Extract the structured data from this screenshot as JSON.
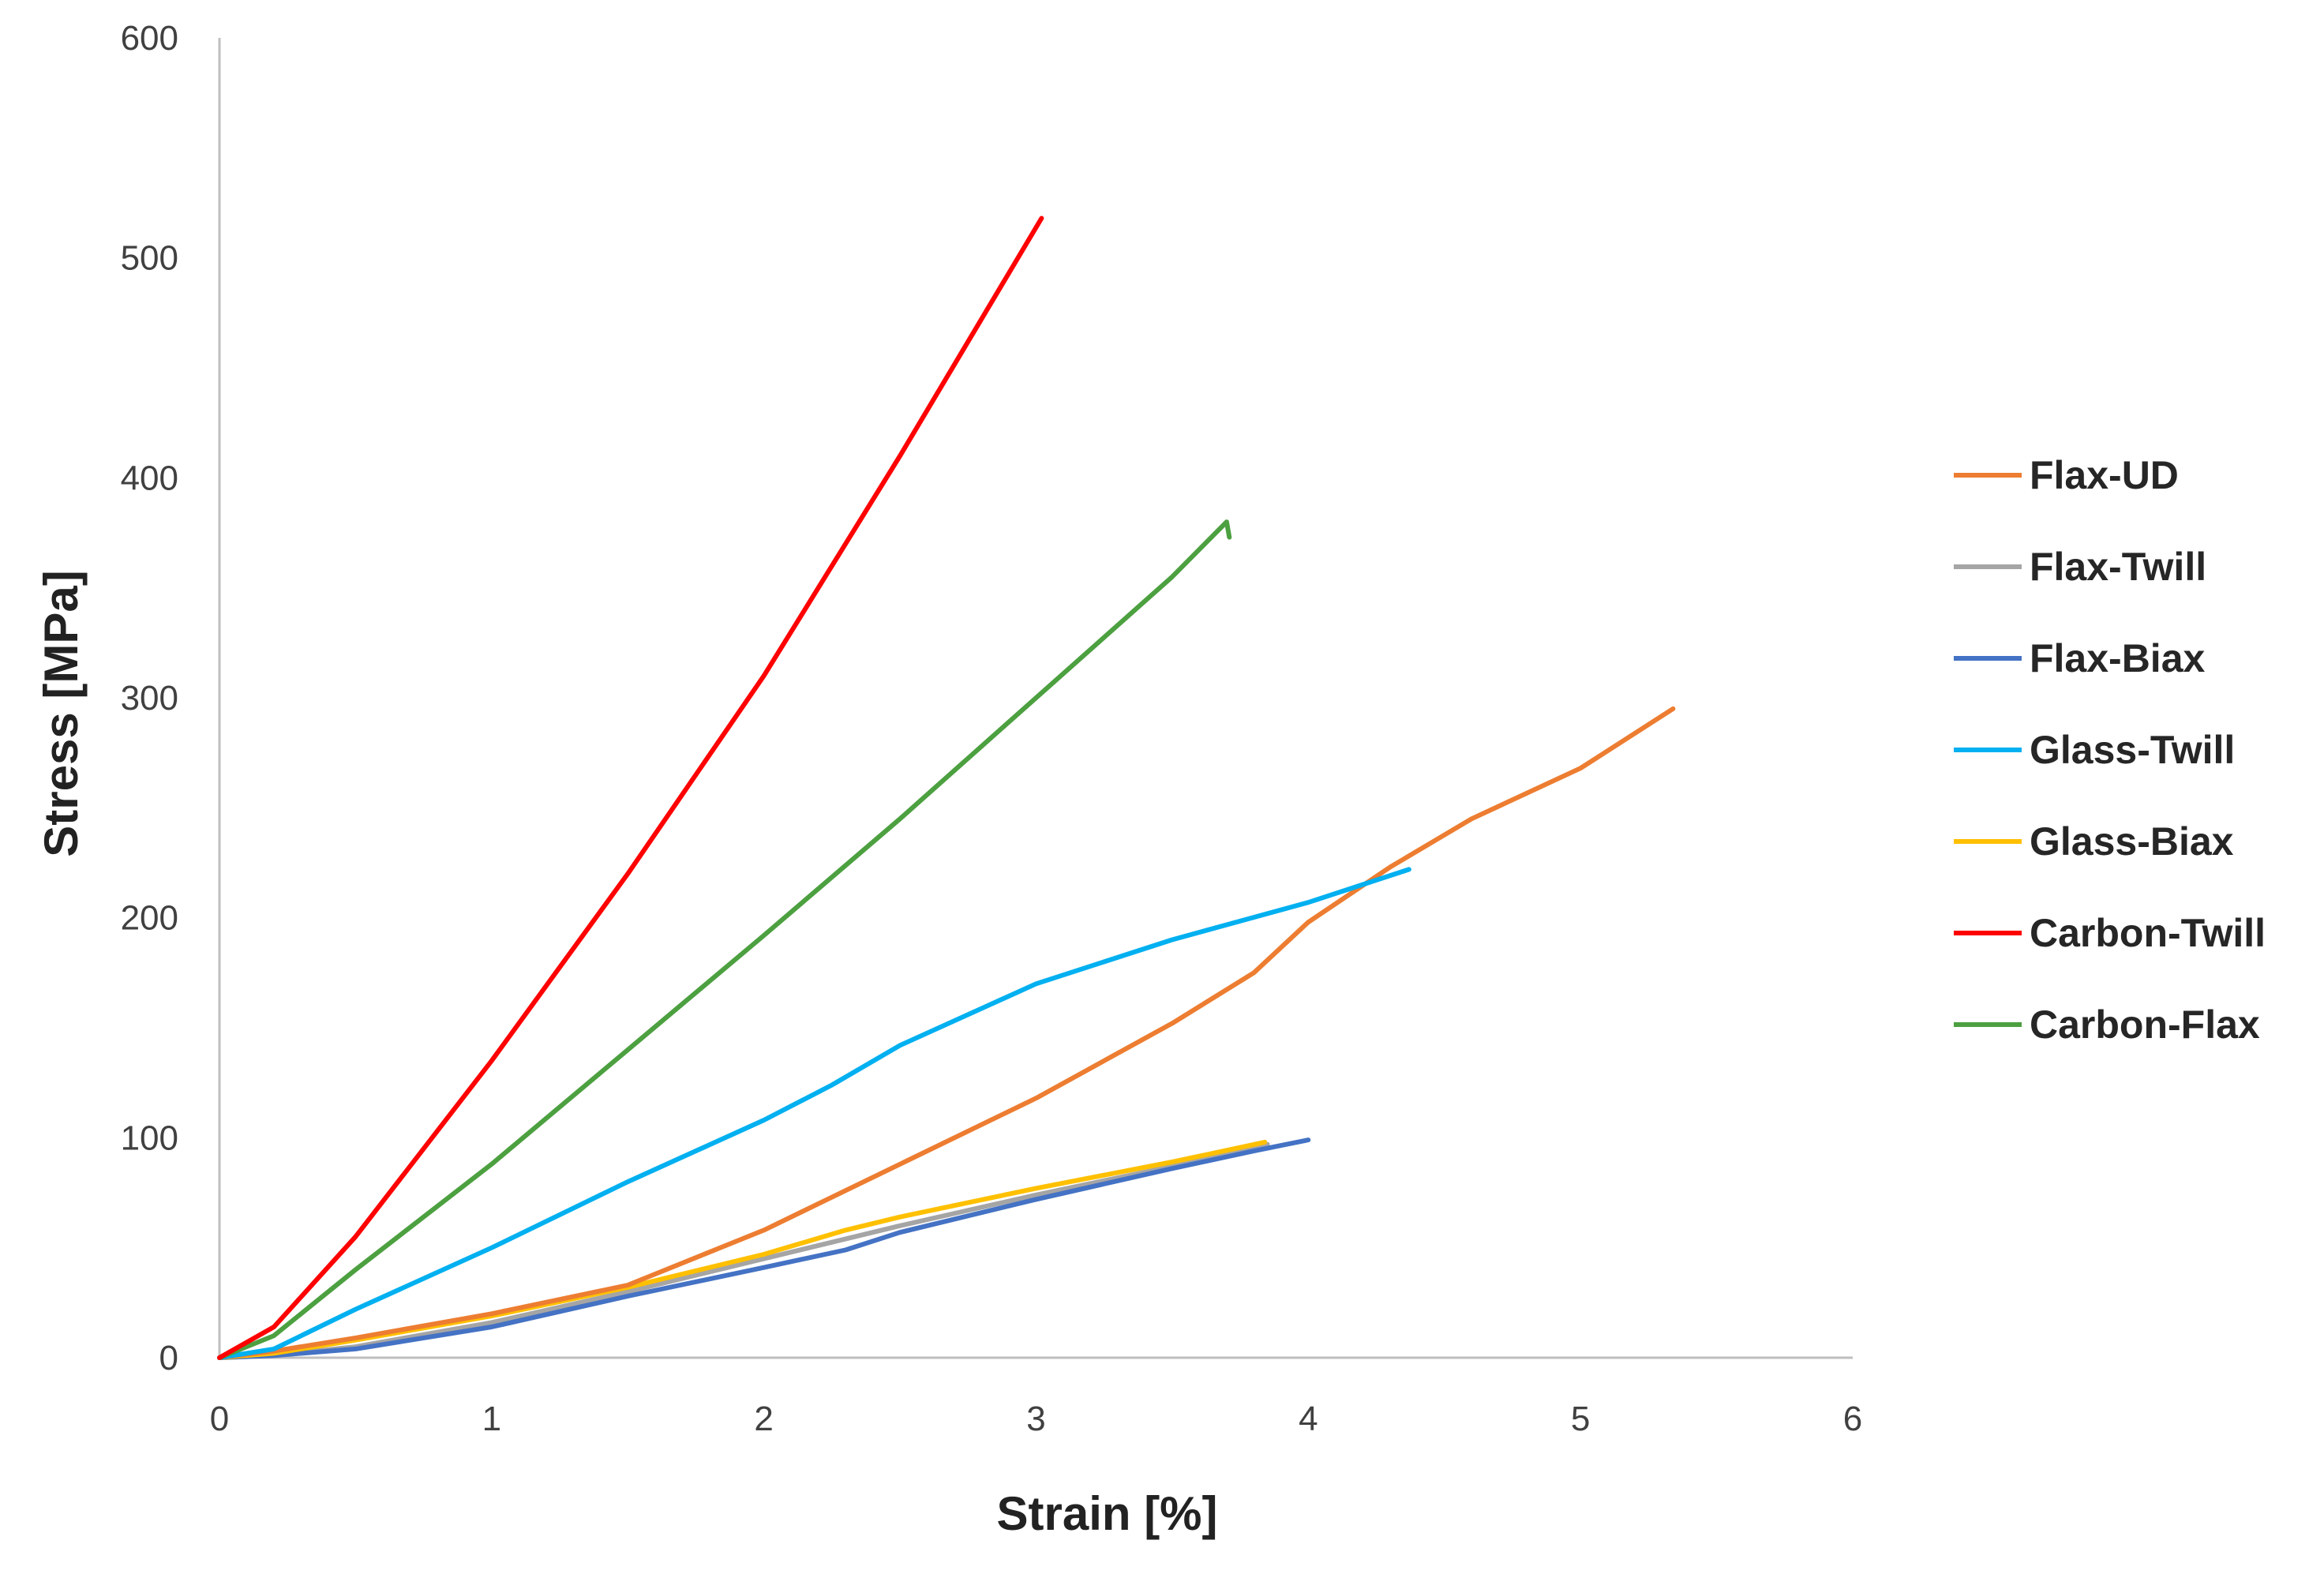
{
  "chart_data": {
    "type": "line",
    "title": "",
    "xlabel": "Strain [%]",
    "ylabel": "Stress [MPa]",
    "xlim": [
      0,
      6
    ],
    "ylim": [
      0,
      600
    ],
    "xticks": [
      0,
      1,
      2,
      3,
      4,
      5,
      6
    ],
    "yticks": [
      0,
      100,
      200,
      300,
      400,
      500,
      600
    ],
    "grid": false,
    "legend_position": "right",
    "series": [
      {
        "name": "Flax-UD",
        "color": "#ED7D31",
        "points": [
          [
            0,
            0
          ],
          [
            0.2,
            3
          ],
          [
            0.5,
            9
          ],
          [
            1.0,
            20
          ],
          [
            1.5,
            33
          ],
          [
            2.0,
            58
          ],
          [
            2.5,
            88
          ],
          [
            3.0,
            118
          ],
          [
            3.5,
            152
          ],
          [
            3.8,
            175
          ],
          [
            4.0,
            198
          ],
          [
            4.3,
            223
          ],
          [
            4.6,
            245
          ],
          [
            5.0,
            268
          ],
          [
            5.34,
            295
          ]
        ]
      },
      {
        "name": "Flax-Twill",
        "color": "#A5A5A5",
        "points": [
          [
            0,
            0
          ],
          [
            0.2,
            1
          ],
          [
            0.5,
            5
          ],
          [
            1.0,
            16
          ],
          [
            1.5,
            30
          ],
          [
            2.0,
            45
          ],
          [
            2.5,
            60
          ],
          [
            3.0,
            74
          ],
          [
            3.5,
            87
          ],
          [
            3.85,
            97
          ]
        ]
      },
      {
        "name": "Flax-Biax",
        "color": "#4472C4",
        "points": [
          [
            0,
            0
          ],
          [
            0.2,
            1
          ],
          [
            0.5,
            4
          ],
          [
            1.0,
            14
          ],
          [
            1.5,
            28
          ],
          [
            2.0,
            41
          ],
          [
            2.3,
            49
          ],
          [
            2.5,
            57
          ],
          [
            3.0,
            72
          ],
          [
            3.5,
            86
          ],
          [
            3.8,
            94
          ],
          [
            4.0,
            99
          ]
        ]
      },
      {
        "name": "Glass-Twill",
        "color": "#00B0F0",
        "points": [
          [
            0,
            0
          ],
          [
            0.2,
            4
          ],
          [
            0.5,
            22
          ],
          [
            1.0,
            50
          ],
          [
            1.5,
            80
          ],
          [
            2.0,
            108
          ],
          [
            2.25,
            124
          ],
          [
            2.5,
            142
          ],
          [
            3.0,
            170
          ],
          [
            3.5,
            190
          ],
          [
            4.0,
            207
          ],
          [
            4.37,
            222
          ]
        ]
      },
      {
        "name": "Glass-Biax",
        "color": "#FFC000",
        "points": [
          [
            0,
            0
          ],
          [
            0.2,
            2
          ],
          [
            0.5,
            8
          ],
          [
            1.0,
            19
          ],
          [
            1.5,
            32
          ],
          [
            2.0,
            47
          ],
          [
            2.3,
            58
          ],
          [
            2.5,
            64
          ],
          [
            3.0,
            77
          ],
          [
            3.5,
            89
          ],
          [
            3.84,
            98
          ]
        ]
      },
      {
        "name": "Carbon-Twill",
        "color": "#FF0000",
        "points": [
          [
            0,
            0
          ],
          [
            0.2,
            14
          ],
          [
            0.5,
            55
          ],
          [
            1.0,
            135
          ],
          [
            1.5,
            220
          ],
          [
            2.0,
            310
          ],
          [
            2.5,
            410
          ],
          [
            3.02,
            518
          ]
        ]
      },
      {
        "name": "Carbon-Flax",
        "color": "#4CA040",
        "points": [
          [
            0,
            0
          ],
          [
            0.2,
            10
          ],
          [
            0.5,
            40
          ],
          [
            1.0,
            88
          ],
          [
            1.5,
            140
          ],
          [
            2.0,
            192
          ],
          [
            2.5,
            245
          ],
          [
            3.0,
            300
          ],
          [
            3.5,
            355
          ],
          [
            3.7,
            380
          ],
          [
            3.71,
            373
          ]
        ]
      }
    ]
  }
}
